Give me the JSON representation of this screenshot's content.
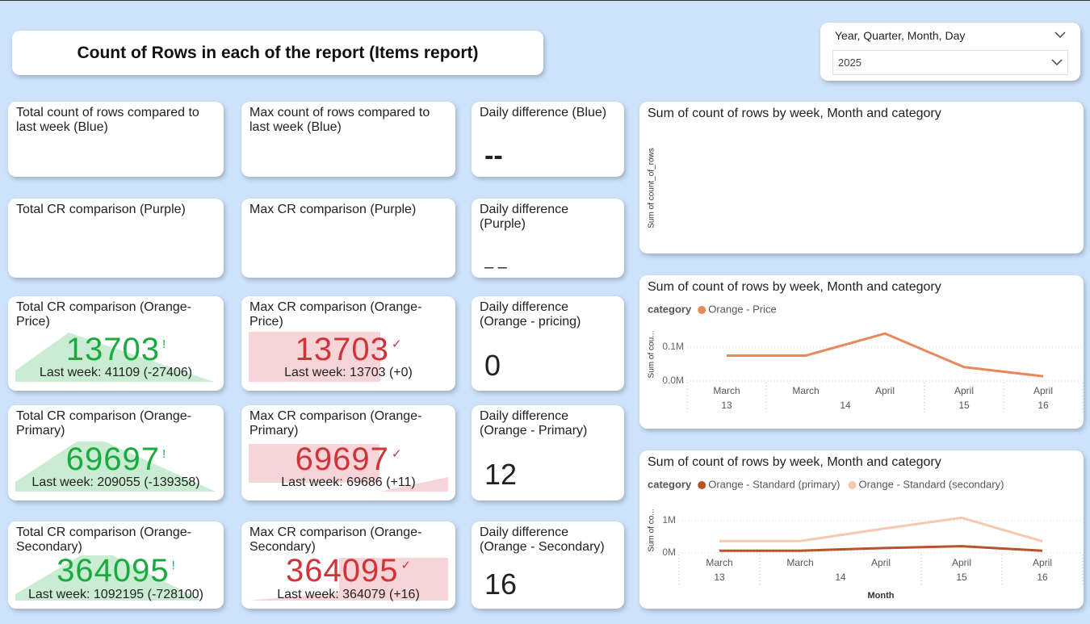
{
  "header": {
    "title": "Count of Rows in each of the report (Items report)"
  },
  "slicer": {
    "label": "Year, Quarter, Month, Day",
    "value": "2025"
  },
  "cards": [
    {
      "title": "Total count of rows compared to last week (Blue)"
    },
    {
      "title": "Max count of rows compared to last week (Blue)"
    },
    {
      "title": "Daily difference (Blue)",
      "value": "--"
    },
    {
      "title": "Total CR comparison (Purple)"
    },
    {
      "title": "Max CR comparison (Purple)"
    },
    {
      "title": "Daily difference (Purple)",
      "value": "– –"
    },
    {
      "title": "Total CR comparison (Orange-Price)",
      "value": 13703,
      "status": "!",
      "note": "Last week: 41109 (-27406)",
      "color": "#1aab40"
    },
    {
      "title": "Max CR comparison (Orange-Price)",
      "value": 13703,
      "status": "✓",
      "note": "Last week: 13703 (+0)",
      "color": "#d13438"
    },
    {
      "title": "Daily difference (Orange - pricing)",
      "value": 0
    },
    {
      "title": "Total CR comparison (Orange-Primary)",
      "value": 69697,
      "status": "!",
      "note": "Last week: 209055 (-139358)",
      "color": "#1aab40"
    },
    {
      "title": "Max CR comparison (Orange-Primary)",
      "value": 69697,
      "status": "✓",
      "note": "Last week: 69686 (+11)",
      "color": "#d13438"
    },
    {
      "title": "Daily difference (Orange - Primary)",
      "value": 12
    },
    {
      "title": "Total CR comparison (Orange-Secondary)",
      "value": 364095,
      "status": "!",
      "note": "Last week: 1092195 (-728100)",
      "color": "#1aab40"
    },
    {
      "title": "Max CR comparison (Orange-Secondary)",
      "value": 364095,
      "status": "✓",
      "note": "Last week: 364079 (+16)",
      "color": "#d13438"
    },
    {
      "title": "Daily difference (Orange - Secondary)",
      "value": 16
    }
  ],
  "chart_data": [
    {
      "type": "line",
      "title": "Sum of count of rows by week, Month and category",
      "ylabel": "Sum of count_of_rows"
    },
    {
      "type": "line",
      "title": "Sum of count of rows by week, Month and category",
      "ylabel": "Sum of cou...",
      "legend_title": "category",
      "categories": [
        "March",
        "March",
        "April",
        "April",
        "April"
      ],
      "weeks": [
        "13",
        "14",
        null,
        "15",
        "16"
      ],
      "ylim": [
        0,
        157000
      ],
      "yticks": [
        {
          "value": 0,
          "label": "0.0M"
        },
        {
          "value": 100000,
          "label": "0.1M"
        }
      ],
      "grid": true,
      "series": [
        {
          "name": "Orange - Price",
          "color": "#e8895b",
          "values": [
            75000,
            75000,
            140000,
            41000,
            14000
          ]
        }
      ]
    },
    {
      "type": "line",
      "title": "Sum of count of rows by week, Month and category",
      "ylabel": "Sum of co...",
      "xlabel": "Month",
      "legend_title": "category",
      "categories": [
        "March",
        "March",
        "April",
        "April",
        "April"
      ],
      "weeks": [
        "13",
        "14",
        null,
        "15",
        "16"
      ],
      "ylim": [
        0,
        1400000
      ],
      "yticks": [
        {
          "value": 0,
          "label": "0M"
        },
        {
          "value": 1000000,
          "label": "1M"
        }
      ],
      "grid": true,
      "series": [
        {
          "name": "Orange - Standard (primary)",
          "color": "#b5532a",
          "values": [
            70000,
            70000,
            150000,
            210000,
            70000
          ]
        },
        {
          "name": "Orange - Standard (secondary)",
          "color": "#f5c9b1",
          "values": [
            370000,
            370000,
            740000,
            1090000,
            364000
          ]
        }
      ]
    }
  ]
}
